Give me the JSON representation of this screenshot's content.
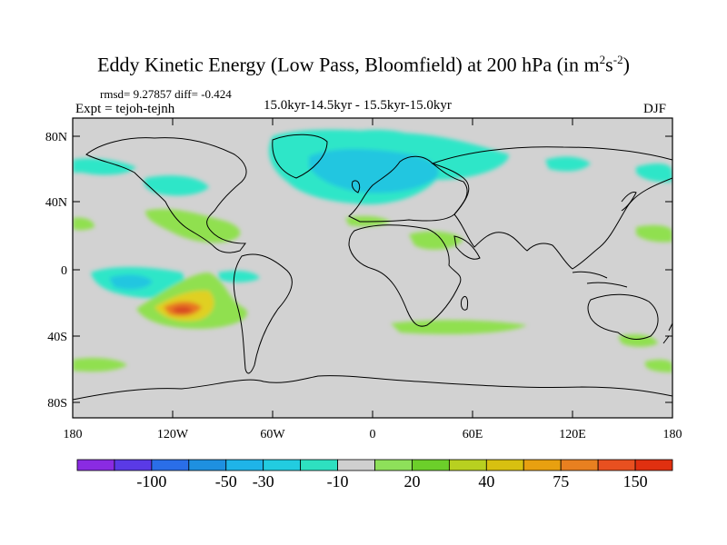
{
  "title": {
    "main": "Eddy Kinetic Energy (Low Pass, Bloomfield) at 200 hPa (in m",
    "sup1": "2",
    "mid": "s",
    "sup2": "-2",
    "end": ")"
  },
  "info": {
    "rmsd": "rmsd= 9.27857 diff= -0.424",
    "expt": "Expt = tejoh-tejnh",
    "period": "15.0kyr-14.5kyr - 15.5kyr-15.0kyr",
    "season": "DJF"
  },
  "axes": {
    "x_ticks": [
      "180",
      "120W",
      "60W",
      "0",
      "60E",
      "120E",
      "180"
    ],
    "y_ticks": [
      "80N",
      "40N",
      "0",
      "40S",
      "80S"
    ]
  },
  "colorbar": {
    "labels": [
      "-100",
      "-50",
      "-30",
      "-10",
      "20",
      "40",
      "75",
      "150"
    ],
    "colors": [
      "#8a2be2",
      "#5a3ae6",
      "#2a6ee8",
      "#1e90e0",
      "#1fb4e8",
      "#22cce0",
      "#2ee0c0",
      "#cfcfcf",
      "#8ee05a",
      "#6ccf2a",
      "#b8d020",
      "#d8c010",
      "#e8a010",
      "#e88020",
      "#e85020",
      "#e03010"
    ]
  },
  "colors": {
    "land_ocean_bg": "#d2d2d2",
    "neg_weak": "#2fe6c8",
    "neg_mid": "#22c6e0",
    "neg_strong": "#1a9ee0",
    "pos_weak": "#90e050",
    "pos_mid": "#e0d020",
    "pos_strong": "#e87820",
    "pos_max": "#d84a20"
  }
}
